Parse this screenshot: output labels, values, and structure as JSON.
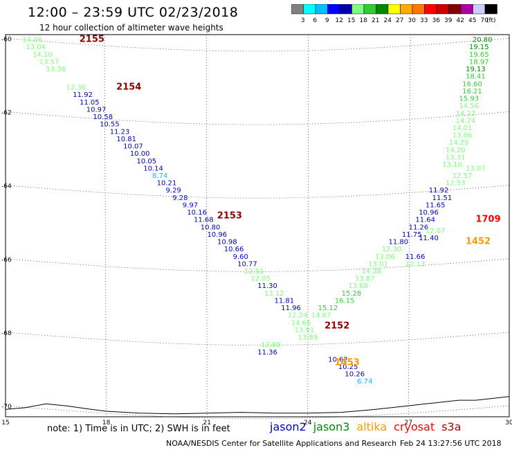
{
  "header": {
    "title": "12:00 – 23:59 UTC 02/23/2018",
    "subtitle": "12 hour collection of altimeter wave heights"
  },
  "colorbar": {
    "colors": [
      "#808080",
      "#00ffff",
      "#00bfff",
      "#0000ff",
      "#0000aa",
      "#7fff7f",
      "#33cc33",
      "#008800",
      "#ffff00",
      "#ffaa00",
      "#ff7700",
      "#ff0000",
      "#cc0000",
      "#880000",
      "#aa00aa",
      "#ccccff",
      "#000000"
    ],
    "labels": [
      "3",
      "6",
      "9",
      "12",
      "15",
      "18",
      "21",
      "24",
      "27",
      "30",
      "33",
      "36",
      "39",
      "42",
      "45",
      "70",
      "(ft)"
    ]
  },
  "map": {
    "lat_labels": [
      "-60",
      "-62",
      "-64",
      "-66",
      "-68",
      "-70"
    ],
    "lon_labels": [
      "15",
      "18",
      "21",
      "24",
      "27",
      "30"
    ],
    "lat_range": [
      -70.3,
      -59.9
    ],
    "lon_range": [
      15,
      30
    ]
  },
  "tracks": [
    {
      "satellite": "jason2",
      "time_label": "2155",
      "label_color": "#880000",
      "label_pos": [
        17.2,
        -60.1
      ]
    },
    {
      "satellite": "jason2",
      "time_label": "2154",
      "label_color": "#880000",
      "label_pos": [
        18.3,
        -61.4
      ]
    },
    {
      "satellite": "jason2",
      "time_label": "2153",
      "label_color": "#880000",
      "label_pos": [
        21.3,
        -64.9
      ]
    },
    {
      "satellite": "jason2",
      "time_label": "2152",
      "label_color": "#880000",
      "label_pos": [
        24.5,
        -67.9
      ]
    },
    {
      "satellite": "altika",
      "time_label": "1453",
      "label_color": "#ff9900",
      "label_pos": [
        24.8,
        -68.9
      ]
    },
    {
      "satellite": "altika",
      "time_label": "1452",
      "label_color": "#ff9900",
      "label_pos": [
        28.7,
        -65.6
      ]
    },
    {
      "satellite": "cryosat",
      "time_label": "1709",
      "label_color": "#ff0000",
      "label_pos": [
        29.0,
        -65.0
      ]
    }
  ],
  "points": [
    {
      "v": "14.06",
      "c": "#7fff7f",
      "lon": 15.8,
      "lat": -60.1
    },
    {
      "v": "13.04",
      "c": "#7fff7f",
      "lon": 15.9,
      "lat": -60.3
    },
    {
      "v": "14.10",
      "c": "#7fff7f",
      "lon": 16.1,
      "lat": -60.5
    },
    {
      "v": "13.57",
      "c": "#7fff7f",
      "lon": 16.3,
      "lat": -60.7
    },
    {
      "v": "13.36",
      "c": "#7fff7f",
      "lon": 16.5,
      "lat": -60.9
    },
    {
      "v": "12.36",
      "c": "#7fff7f",
      "lon": 17.1,
      "lat": -61.4
    },
    {
      "v": "11.92",
      "c": "#0000aa",
      "lon": 17.3,
      "lat": -61.6
    },
    {
      "v": "11.05",
      "c": "#0000aa",
      "lon": 17.5,
      "lat": -61.8
    },
    {
      "v": "10.97",
      "c": "#0000aa",
      "lon": 17.7,
      "lat": -62.0
    },
    {
      "v": "10.58",
      "c": "#0000aa",
      "lon": 17.9,
      "lat": -62.2
    },
    {
      "v": "10.55",
      "c": "#0000aa",
      "lon": 18.1,
      "lat": -62.4
    },
    {
      "v": "11.23",
      "c": "#0000aa",
      "lon": 18.4,
      "lat": -62.6
    },
    {
      "v": "10.81",
      "c": "#0000aa",
      "lon": 18.6,
      "lat": -62.8
    },
    {
      "v": "10.07",
      "c": "#0000aa",
      "lon": 18.8,
      "lat": -63.0
    },
    {
      "v": "10.00",
      "c": "#0000aa",
      "lon": 19.0,
      "lat": -63.2
    },
    {
      "v": "10.05",
      "c": "#0000aa",
      "lon": 19.2,
      "lat": -63.4
    },
    {
      "v": "10.14",
      "c": "#0000aa",
      "lon": 19.4,
      "lat": -63.6
    },
    {
      "v": "8.74",
      "c": "#00bfff",
      "lon": 19.6,
      "lat": -63.8
    },
    {
      "v": "10.21",
      "c": "#0000aa",
      "lon": 19.8,
      "lat": -64.0
    },
    {
      "v": "9.29",
      "c": "#0000ff",
      "lon": 20.0,
      "lat": -64.2
    },
    {
      "v": "9.28",
      "c": "#0000ff",
      "lon": 20.2,
      "lat": -64.4
    },
    {
      "v": "9.97",
      "c": "#0000ff",
      "lon": 20.5,
      "lat": -64.6
    },
    {
      "v": "10.16",
      "c": "#0000aa",
      "lon": 20.7,
      "lat": -64.8
    },
    {
      "v": "11.68",
      "c": "#0000aa",
      "lon": 20.9,
      "lat": -65.0
    },
    {
      "v": "10.80",
      "c": "#0000aa",
      "lon": 21.1,
      "lat": -65.2
    },
    {
      "v": "10.96",
      "c": "#0000aa",
      "lon": 21.3,
      "lat": -65.4
    },
    {
      "v": "10.98",
      "c": "#0000aa",
      "lon": 21.6,
      "lat": -65.6
    },
    {
      "v": "10.66",
      "c": "#0000aa",
      "lon": 21.8,
      "lat": -65.8
    },
    {
      "v": "9.60",
      "c": "#0000ff",
      "lon": 22.0,
      "lat": -66.0
    },
    {
      "v": "10.77",
      "c": "#0000aa",
      "lon": 22.2,
      "lat": -66.2
    },
    {
      "v": "12.51",
      "c": "#7fff7f",
      "lon": 22.4,
      "lat": -66.4
    },
    {
      "v": "12.05",
      "c": "#7fff7f",
      "lon": 22.6,
      "lat": -66.6
    },
    {
      "v": "11.30",
      "c": "#0000aa",
      "lon": 22.8,
      "lat": -66.8
    },
    {
      "v": "13.12",
      "c": "#7fff7f",
      "lon": 23.0,
      "lat": -67.0
    },
    {
      "v": "11.81",
      "c": "#0000aa",
      "lon": 23.3,
      "lat": -67.2
    },
    {
      "v": "11.96",
      "c": "#0000aa",
      "lon": 23.5,
      "lat": -67.4
    },
    {
      "v": "12.24",
      "c": "#7fff7f",
      "lon": 23.7,
      "lat": -67.6
    },
    {
      "v": "14.66",
      "c": "#7fff7f",
      "lon": 23.8,
      "lat": -67.8
    },
    {
      "v": "13.91",
      "c": "#7fff7f",
      "lon": 23.9,
      "lat": -68.0
    },
    {
      "v": "13.89",
      "c": "#7fff7f",
      "lon": 24.0,
      "lat": -68.2
    },
    {
      "v": "12.88",
      "c": "#7fff7f",
      "lon": 22.9,
      "lat": -68.4
    },
    {
      "v": "11.36",
      "c": "#0000aa",
      "lon": 22.8,
      "lat": -68.6
    },
    {
      "v": "15.12",
      "c": "#33cc33",
      "lon": 24.6,
      "lat": -67.4
    },
    {
      "v": "14.67",
      "c": "#7fff7f",
      "lon": 24.4,
      "lat": -67.6
    },
    {
      "v": "16.15",
      "c": "#33cc33",
      "lon": 25.1,
      "lat": -67.2
    },
    {
      "v": "15.28",
      "c": "#33cc33",
      "lon": 25.3,
      "lat": -67.0
    },
    {
      "v": "13.68",
      "c": "#7fff7f",
      "lon": 25.5,
      "lat": -66.8
    },
    {
      "v": "13.87",
      "c": "#7fff7f",
      "lon": 25.7,
      "lat": -66.6
    },
    {
      "v": "14.38",
      "c": "#7fff7f",
      "lon": 25.9,
      "lat": -66.4
    },
    {
      "v": "13.01",
      "c": "#7fff7f",
      "lon": 26.1,
      "lat": -66.2
    },
    {
      "v": "13.06",
      "c": "#7fff7f",
      "lon": 26.3,
      "lat": -66.0
    },
    {
      "v": "12.30",
      "c": "#7fff7f",
      "lon": 26.5,
      "lat": -65.8
    },
    {
      "v": "11.80",
      "c": "#0000aa",
      "lon": 26.7,
      "lat": -65.6
    },
    {
      "v": "11.75",
      "c": "#0000aa",
      "lon": 27.1,
      "lat": -65.4
    },
    {
      "v": "11.26",
      "c": "#0000aa",
      "lon": 27.3,
      "lat": -65.2
    },
    {
      "v": "11.64",
      "c": "#0000aa",
      "lon": 27.5,
      "lat": -65.0
    },
    {
      "v": "10.96",
      "c": "#0000aa",
      "lon": 27.6,
      "lat": -64.8
    },
    {
      "v": "11.65",
      "c": "#0000aa",
      "lon": 27.8,
      "lat": -64.6
    },
    {
      "v": "11.51",
      "c": "#0000aa",
      "lon": 28.0,
      "lat": -64.4
    },
    {
      "v": "11.92",
      "c": "#0000aa",
      "lon": 27.9,
      "lat": -64.2
    },
    {
      "v": "11.40",
      "c": "#0000aa",
      "lon": 27.6,
      "lat": -65.5
    },
    {
      "v": "11.66",
      "c": "#0000aa",
      "lon": 27.2,
      "lat": -66.0
    },
    {
      "v": "12.13",
      "c": "#7fff7f",
      "lon": 27.2,
      "lat": -66.2
    },
    {
      "v": "12.07",
      "c": "#7fff7f",
      "lon": 27.8,
      "lat": -65.3
    },
    {
      "v": "12.53",
      "c": "#7fff7f",
      "lon": 28.4,
      "lat": -64.0
    },
    {
      "v": "12.57",
      "c": "#7fff7f",
      "lon": 28.6,
      "lat": -63.8
    },
    {
      "v": "13.07",
      "c": "#7fff7f",
      "lon": 29.0,
      "lat": -63.6
    },
    {
      "v": "13.10",
      "c": "#7fff7f",
      "lon": 28.3,
      "lat": -63.5
    },
    {
      "v": "13.31",
      "c": "#7fff7f",
      "lon": 28.4,
      "lat": -63.3
    },
    {
      "v": "14.20",
      "c": "#7fff7f",
      "lon": 28.4,
      "lat": -63.1
    },
    {
      "v": "14.20",
      "c": "#7fff7f",
      "lon": 28.5,
      "lat": -62.9
    },
    {
      "v": "13.66",
      "c": "#7fff7f",
      "lon": 28.6,
      "lat": -62.7
    },
    {
      "v": "14.01",
      "c": "#7fff7f",
      "lon": 28.6,
      "lat": -62.5
    },
    {
      "v": "14.24",
      "c": "#7fff7f",
      "lon": 28.7,
      "lat": -62.3
    },
    {
      "v": "14.22",
      "c": "#7fff7f",
      "lon": 28.7,
      "lat": -62.1
    },
    {
      "v": "14.56",
      "c": "#7fff7f",
      "lon": 28.8,
      "lat": -61.9
    },
    {
      "v": "15.93",
      "c": "#33cc33",
      "lon": 28.8,
      "lat": -61.7
    },
    {
      "v": "16.21",
      "c": "#33cc33",
      "lon": 28.9,
      "lat": -61.5
    },
    {
      "v": "16.60",
      "c": "#33cc33",
      "lon": 28.9,
      "lat": -61.3
    },
    {
      "v": "18.41",
      "c": "#33cc33",
      "lon": 29.0,
      "lat": -61.1
    },
    {
      "v": "19.13",
      "c": "#008800",
      "lon": 29.0,
      "lat": -60.9
    },
    {
      "v": "18.97",
      "c": "#33cc33",
      "lon": 29.1,
      "lat": -60.7
    },
    {
      "v": "19.65",
      "c": "#33cc33",
      "lon": 29.1,
      "lat": -60.5
    },
    {
      "v": "19.15",
      "c": "#008800",
      "lon": 29.1,
      "lat": -60.3
    },
    {
      "v": "20.80",
      "c": "#008800",
      "lon": 29.2,
      "lat": -60.1
    },
    {
      "v": "10.62",
      "c": "#0000aa",
      "lon": 24.9,
      "lat": -68.8
    },
    {
      "v": "10.25",
      "c": "#0000aa",
      "lon": 25.2,
      "lat": -69.0
    },
    {
      "v": "10.26",
      "c": "#0000aa",
      "lon": 25.4,
      "lat": -69.2
    },
    {
      "v": "6.74",
      "c": "#00bfff",
      "lon": 25.7,
      "lat": -69.4
    }
  ],
  "footer": {
    "note": "note: 1) Time is in UTC; 2) SWH is in feet",
    "legend": [
      {
        "name": "jason2",
        "color": "#0000cc"
      },
      {
        "name": "jason3",
        "color": "#008800"
      },
      {
        "name": "altika",
        "color": "#ff9900"
      },
      {
        "name": "cryosat",
        "color": "#ff0000"
      },
      {
        "name": "s3a",
        "color": "#aa0000"
      }
    ],
    "credit": "NOAA/NESDIS Center for Satellite Applications and Research",
    "timestamp": "Feb 24 13:27:56 UTC 2018"
  }
}
